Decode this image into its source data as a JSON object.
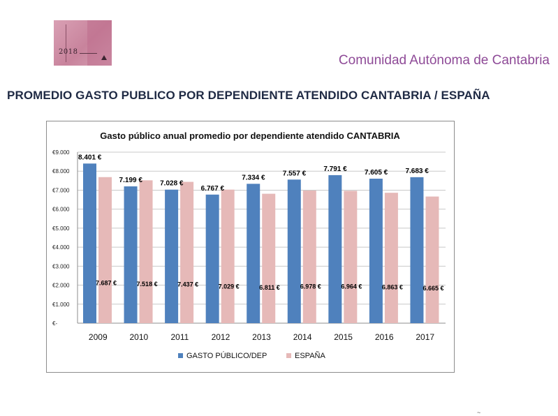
{
  "header": {
    "logo_year": "2018",
    "region": "Comunidad Autónoma de Cantabria",
    "title": "PROMEDIO GASTO PUBLICO POR DEPENDIENTE ATENDIDO CANTABRIA / ESPAÑA"
  },
  "colors": {
    "cantabria": "#4f81bd",
    "espana": "#e6b9b8",
    "region_text": "#8e4a97"
  },
  "chart_data": {
    "type": "bar",
    "title": "Gasto público anual promedio por dependiente atendido CANTABRIA",
    "categories": [
      "2009",
      "2010",
      "2011",
      "2012",
      "2013",
      "2014",
      "2015",
      "2016",
      "2017"
    ],
    "series": [
      {
        "name": "GASTO PÚBLICO/DEP",
        "values": [
          8401,
          7199,
          7028,
          6767,
          7334,
          7557,
          7791,
          7605,
          7683
        ],
        "labels": [
          "8.401 €",
          "7.199 €",
          "7.028 €",
          "6.767 €",
          "7.334 €",
          "7.557 €",
          "7.791 €",
          "7.605 €",
          "7.683 €"
        ]
      },
      {
        "name": "ESPAÑA",
        "values": [
          7687,
          7518,
          7437,
          7029,
          6811,
          6978,
          6964,
          6863,
          6665
        ],
        "labels": [
          "7.687 €",
          "7.518 €",
          "7.437 €",
          "7.029 €",
          "6.811 €",
          "6.978 €",
          "6.964 €",
          "6.863 €",
          "6.665 €"
        ]
      }
    ],
    "ylim": [
      0,
      9000
    ],
    "yticks": [
      0,
      1000,
      2000,
      3000,
      4000,
      5000,
      6000,
      7000,
      8000,
      9000
    ],
    "ytick_labels": [
      "€-",
      "€1.000",
      "€2.000",
      "€3.000",
      "€4.000",
      "€5.000",
      "€6.000",
      "€7.000",
      "€8.000",
      "€9.000"
    ],
    "grid": true,
    "legend_position": "bottom"
  },
  "footer": {
    "mark": "~"
  }
}
